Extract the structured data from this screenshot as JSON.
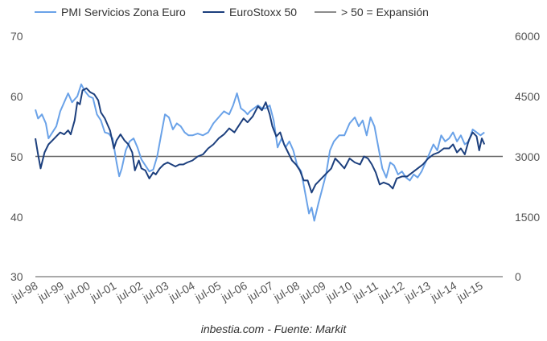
{
  "chart_data": {
    "type": "line",
    "title": "",
    "source": "inbestia.com - Fuente: Markit",
    "legend_position": "top",
    "legend": [
      {
        "label": "PMI Servicios Zona Euro",
        "color": "#6aa2e8"
      },
      {
        "label": "EuroStoxx 50",
        "color": "#1c3f7d"
      },
      {
        "label": "> 50 = Expansión",
        "color": "#666666"
      }
    ],
    "x_tick_labels": [
      "jul-98",
      "jul-99",
      "jul-00",
      "jul-01",
      "jul-02",
      "jul-03",
      "jul-04",
      "jul-05",
      "jul-06",
      "jul-07",
      "jul-08",
      "jul-09",
      "jul-10",
      "jul-11",
      "jul-12",
      "jul-13",
      "jul-14",
      "jul-15"
    ],
    "x_range": [
      1998.5,
      2016.3
    ],
    "y_left": {
      "ticks": [
        "70",
        "60",
        "50",
        "40",
        "30"
      ],
      "range": [
        30,
        70
      ]
    },
    "y_right": {
      "ticks": [
        "6000",
        "4500",
        "3000",
        "1500",
        "0"
      ],
      "range": [
        0,
        6000
      ]
    },
    "grid": false,
    "reference_line": {
      "label": "> 50 = Expansión",
      "axis": "left",
      "value": 50
    },
    "series": [
      {
        "name": "PMI Servicios Zona Euro",
        "axis": "left",
        "color": "#6aa2e8",
        "x": [
          1998.5,
          1998.6,
          1998.75,
          1998.9,
          1999.0,
          1999.15,
          1999.3,
          1999.45,
          1999.6,
          1999.75,
          1999.9,
          2000.0,
          2000.1,
          2000.25,
          2000.4,
          2000.55,
          2000.7,
          2000.85,
          2001.0,
          2001.15,
          2001.3,
          2001.45,
          2001.6,
          2001.7,
          2001.8,
          2001.95,
          2002.1,
          2002.25,
          2002.4,
          2002.55,
          2002.7,
          2002.85,
          2003.0,
          2003.15,
          2003.3,
          2003.45,
          2003.6,
          2003.75,
          2003.9,
          2004.05,
          2004.2,
          2004.35,
          2004.5,
          2004.7,
          2004.9,
          2005.1,
          2005.3,
          2005.5,
          2005.7,
          2005.9,
          2006.05,
          2006.2,
          2006.35,
          2006.5,
          2006.6,
          2006.7,
          2006.85,
          2007.0,
          2007.15,
          2007.3,
          2007.45,
          2007.6,
          2007.75,
          2007.9,
          2008.05,
          2008.2,
          2008.35,
          2008.5,
          2008.65,
          2008.8,
          2008.95,
          2009.05,
          2009.15,
          2009.3,
          2009.45,
          2009.6,
          2009.75,
          2009.9,
          2010.1,
          2010.3,
          2010.5,
          2010.7,
          2010.85,
          2011.0,
          2011.15,
          2011.3,
          2011.45,
          2011.6,
          2011.75,
          2011.9,
          2012.05,
          2012.2,
          2012.35,
          2012.5,
          2012.65,
          2012.8,
          2012.95,
          2013.1,
          2013.25,
          2013.4,
          2013.55,
          2013.7,
          2013.85,
          2014.0,
          2014.15,
          2014.3,
          2014.45,
          2014.6,
          2014.75,
          2014.9,
          2015.05,
          2015.2,
          2015.35,
          2015.5,
          2015.65
        ],
        "values": [
          57.8,
          56.3,
          57.0,
          55.5,
          53.0,
          54.0,
          55.0,
          57.5,
          59.0,
          60.5,
          59.0,
          59.5,
          60.0,
          62.0,
          60.8,
          60.0,
          59.7,
          57.0,
          56.0,
          54.0,
          53.8,
          53.0,
          49.0,
          46.7,
          48.0,
          51.0,
          52.5,
          53.0,
          51.5,
          49.5,
          48.5,
          47.5,
          47.8,
          50.0,
          53.5,
          57.0,
          56.5,
          54.5,
          55.5,
          55.0,
          54.0,
          53.5,
          53.5,
          53.8,
          53.5,
          54.0,
          55.5,
          56.5,
          57.5,
          57.0,
          58.5,
          60.5,
          58.0,
          57.5,
          57.0,
          57.5,
          58.0,
          58.5,
          58.0,
          58.0,
          58.5,
          56.0,
          51.5,
          53.0,
          51.5,
          52.5,
          51.0,
          48.5,
          47.5,
          44.0,
          40.5,
          41.5,
          39.3,
          42.0,
          44.5,
          47.0,
          51.0,
          52.5,
          53.5,
          53.5,
          55.5,
          56.5,
          55.0,
          56.0,
          53.5,
          56.5,
          55.0,
          51.5,
          48.0,
          46.5,
          49.0,
          48.5,
          47.0,
          47.5,
          46.5,
          46.0,
          47.0,
          46.5,
          47.5,
          49.0,
          50.5,
          52.0,
          51.0,
          53.5,
          52.5,
          53.0,
          54.0,
          52.5,
          53.5,
          52.0,
          52.5,
          54.5,
          54.0,
          53.5,
          54.0
        ],
        "note": "approximate readings from the chart"
      },
      {
        "name": "EuroStoxx 50",
        "axis": "right",
        "color": "#1c3f7d",
        "x": [
          1998.5,
          1998.6,
          1998.7,
          1998.85,
          1999.0,
          1999.15,
          1999.3,
          1999.45,
          1999.6,
          1999.75,
          1999.85,
          2000.0,
          2000.1,
          2000.2,
          2000.3,
          2000.45,
          2000.6,
          2000.75,
          2000.9,
          2001.0,
          2001.15,
          2001.25,
          2001.35,
          2001.5,
          2001.6,
          2001.75,
          2001.9,
          2002.05,
          2002.2,
          2002.3,
          2002.45,
          2002.55,
          2002.7,
          2002.85,
          2003.0,
          2003.1,
          2003.25,
          2003.4,
          2003.55,
          2003.7,
          2003.85,
          2004.0,
          2004.15,
          2004.3,
          2004.5,
          2004.7,
          2004.9,
          2005.1,
          2005.3,
          2005.5,
          2005.7,
          2005.9,
          2006.1,
          2006.3,
          2006.45,
          2006.6,
          2006.8,
          2007.0,
          2007.15,
          2007.3,
          2007.45,
          2007.55,
          2007.7,
          2007.85,
          2008.0,
          2008.15,
          2008.3,
          2008.45,
          2008.6,
          2008.75,
          2008.9,
          2009.05,
          2009.2,
          2009.35,
          2009.5,
          2009.65,
          2009.8,
          2009.95,
          2010.1,
          2010.3,
          2010.5,
          2010.7,
          2010.9,
          2011.05,
          2011.2,
          2011.35,
          2011.5,
          2011.65,
          2011.8,
          2012.0,
          2012.15,
          2012.3,
          2012.5,
          2012.7,
          2012.9,
          2013.1,
          2013.3,
          2013.5,
          2013.7,
          2013.9,
          2014.1,
          2014.3,
          2014.45,
          2014.6,
          2014.75,
          2014.9,
          2015.05,
          2015.2,
          2015.35,
          2015.45,
          2015.55,
          2015.65
        ],
        "values": [
          3450,
          3050,
          2700,
          3100,
          3300,
          3400,
          3500,
          3600,
          3550,
          3650,
          3550,
          3900,
          4350,
          4300,
          4650,
          4700,
          4600,
          4550,
          4400,
          4100,
          3950,
          3800,
          3650,
          3200,
          3400,
          3550,
          3400,
          3300,
          3100,
          2650,
          2900,
          2700,
          2650,
          2450,
          2600,
          2550,
          2700,
          2800,
          2850,
          2800,
          2750,
          2800,
          2800,
          2850,
          2900,
          3000,
          3050,
          3200,
          3300,
          3450,
          3550,
          3700,
          3600,
          3800,
          3950,
          3850,
          4000,
          4250,
          4150,
          4350,
          4050,
          3750,
          3500,
          3600,
          3300,
          3100,
          2900,
          2800,
          2650,
          2400,
          2400,
          2100,
          2300,
          2400,
          2500,
          2600,
          2700,
          2950,
          2850,
          2700,
          2950,
          2850,
          2800,
          3000,
          2950,
          2800,
          2600,
          2300,
          2350,
          2300,
          2200,
          2450,
          2500,
          2500,
          2600,
          2700,
          2800,
          2950,
          3050,
          3100,
          3200,
          3200,
          3300,
          3100,
          3200,
          3050,
          3400,
          3600,
          3500,
          3150,
          3450,
          3300
        ],
        "note": "approximate readings from the chart"
      }
    ]
  }
}
